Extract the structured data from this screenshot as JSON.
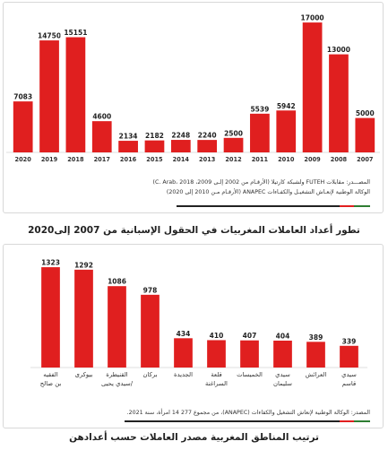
{
  "colors": {
    "bar": "#e01f1f",
    "label_bg": "#ffffff",
    "label_text": "#222222",
    "accent_green": "#2e7d32",
    "accent_red": "#e01f1f",
    "accent_dark": "#222222"
  },
  "chart_data": [
    {
      "type": "bar",
      "title": "",
      "categories": [
        "2020",
        "2019",
        "2018",
        "2017",
        "2016",
        "2015",
        "2014",
        "2013",
        "2012",
        "2011",
        "2010",
        "2009",
        "2008",
        "2007"
      ],
      "values": [
        7083,
        14750,
        15151,
        4600,
        2134,
        2182,
        2248,
        2240,
        2500,
        5539,
        5942,
        17000,
        13000,
        5000
      ],
      "ylim": [
        0,
        17800
      ],
      "grid": false,
      "source_lines": [
        "المصـــدر: مقابلات FUTEH ولشبكة كارتيلا (الأرقـام من 2002 إلـى 2009، C. Arab، 2018)",
        "الوكالة الوطنية لإنعـاش التشغيـل والكفـاءات ANAPEC (الأرقـام مـن 2010 إلى 2020)"
      ],
      "caption": "تطور أعداد العاملات المغربيات في الحقول الإسبانية من 2007 إلى2020"
    },
    {
      "type": "bar",
      "title": "",
      "categories": [
        "الفقيه بن صالح",
        "بيوكرى",
        "القنيطرة /سيدي يحيى",
        "بركان",
        "الجديدة",
        "قلعة السراغنة",
        "الخميسات",
        "سيدي سليمان",
        "العرائش",
        "سيدي قاسم"
      ],
      "values": [
        1323,
        1292,
        1086,
        978,
        434,
        410,
        407,
        404,
        389,
        339
      ],
      "ylim": [
        0,
        1380
      ],
      "grid": false,
      "source_lines": [
        "المصدر: الوكالة الوطنية لإنعاش التشغيل والكفاءات (ANAPEC)، من مجموع 277 14 امرأة، سنة 2021."
      ],
      "caption": "ترتيب المناطق المغربية مصدر العاملات حسب أعدادهن"
    }
  ]
}
